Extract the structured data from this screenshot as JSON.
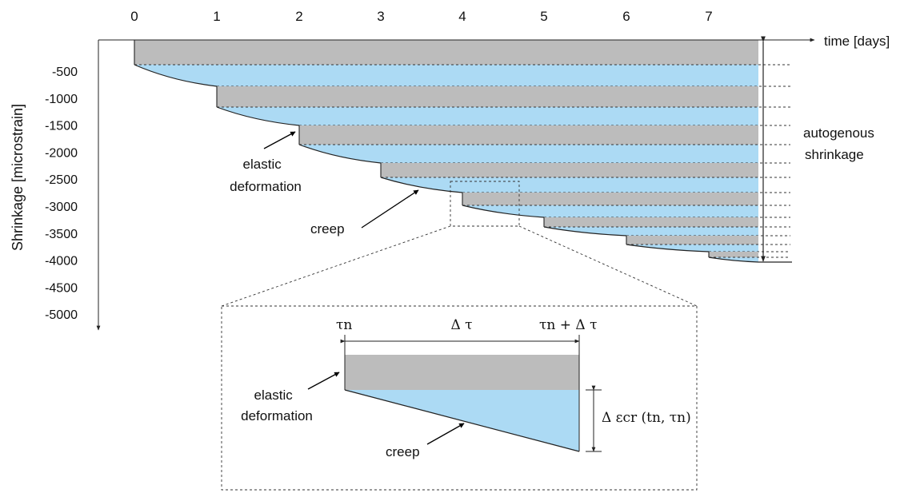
{
  "x_axis": {
    "label": "time [days]",
    "ticks": [
      "0",
      "1",
      "2",
      "3",
      "4",
      "5",
      "6",
      "7"
    ]
  },
  "y_axis": {
    "label": "Shrinkage [microstrain]",
    "ticks": [
      "-500",
      "-1000",
      "-1500",
      "-2000",
      "-2500",
      "-3000",
      "-3500",
      "-4000",
      "-4500",
      "-5000"
    ]
  },
  "annotations": {
    "autogenous": [
      "autogenous",
      "shrinkage"
    ],
    "elastic": [
      "elastic",
      "deformation"
    ],
    "creep": "creep"
  },
  "inset": {
    "tau_n": "τn",
    "delta_tau": "Δ τ",
    "tau_n_plus": "τn + Δ τ",
    "elastic": [
      "elastic",
      "deformation"
    ],
    "creep": "creep",
    "delta_eps": "Δ εcr (tn, τn)"
  },
  "colors": {
    "elastic_fill": "#bcbcbc",
    "creep_fill": "#acdaf4",
    "line": "#222222"
  }
}
